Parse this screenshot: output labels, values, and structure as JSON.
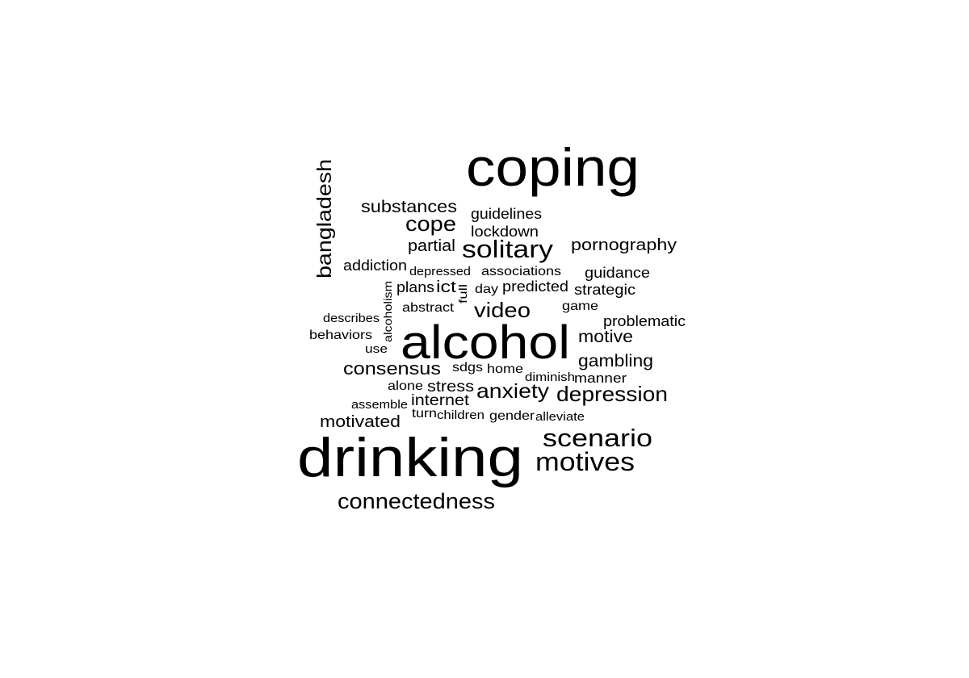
{
  "word_cloud": {
    "color": "#000000",
    "words": [
      {
        "text": "coping"
      },
      {
        "text": "drinking"
      },
      {
        "text": "alcohol"
      },
      {
        "text": "scenario"
      },
      {
        "text": "motives"
      },
      {
        "text": "solitary"
      },
      {
        "text": "depression"
      },
      {
        "text": "video"
      },
      {
        "text": "anxiety"
      },
      {
        "text": "cope"
      },
      {
        "text": "connectedness"
      },
      {
        "text": "bangladesh"
      },
      {
        "text": "consensus"
      },
      {
        "text": "substances"
      },
      {
        "text": "pornography"
      },
      {
        "text": "gambling"
      },
      {
        "text": "motive"
      },
      {
        "text": "partial"
      },
      {
        "text": "motivated"
      },
      {
        "text": "internet"
      },
      {
        "text": "stress"
      },
      {
        "text": "guidance"
      },
      {
        "text": "problematic"
      },
      {
        "text": "guidelines"
      },
      {
        "text": "lockdown"
      },
      {
        "text": "addiction"
      },
      {
        "text": "predicted"
      },
      {
        "text": "strategic"
      },
      {
        "text": "associations"
      },
      {
        "text": "manner"
      },
      {
        "text": "ict"
      },
      {
        "text": "plans"
      },
      {
        "text": "behaviors"
      },
      {
        "text": "abstract"
      },
      {
        "text": "sdgs"
      },
      {
        "text": "home"
      },
      {
        "text": "alone"
      },
      {
        "text": "depressed"
      },
      {
        "text": "day"
      },
      {
        "text": "describes"
      },
      {
        "text": "game"
      },
      {
        "text": "alcoholism"
      },
      {
        "text": "full"
      },
      {
        "text": "use"
      },
      {
        "text": "diminish"
      },
      {
        "text": "assemble"
      },
      {
        "text": "turn"
      },
      {
        "text": "children"
      },
      {
        "text": "gender"
      },
      {
        "text": "alleviate"
      }
    ]
  }
}
